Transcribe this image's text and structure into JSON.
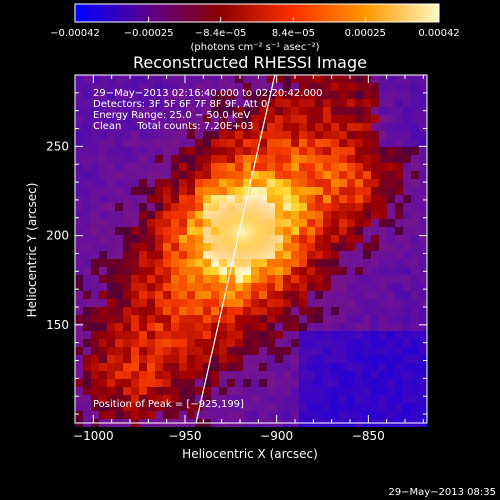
{
  "chart_data": {
    "type": "heatmap",
    "title": "Reconstructed RHESSI Image",
    "xlabel": "Heliocentric X (arcsec)",
    "ylabel": "Heliocentric Y (arcsec)",
    "xlim": [
      -1010,
      -818
    ],
    "ylim": [
      95,
      290
    ],
    "xticks": [
      -1000,
      -950,
      -900,
      -850
    ],
    "xtick_labels": [
      "−1000",
      "−950",
      "−900",
      "−850"
    ],
    "yticks": [
      150,
      200,
      250
    ],
    "ytick_labels": [
      "150",
      "200",
      "250"
    ],
    "colorbar": {
      "min": -0.00042,
      "max": 0.00042,
      "ticks": [
        -0.00042,
        -0.00025,
        -8.4e-05,
        8.4e-05,
        0.00025,
        0.00042
      ],
      "tick_labels": [
        "−0.00042",
        "−0.00025",
        "−8.4e−05",
        "8.4e−05",
        "0.00025",
        "0.00042"
      ],
      "units": "(photons cm⁻² s⁻¹ asec⁻²)",
      "colors": [
        "#0000ff",
        "#5a008c",
        "#8a0000",
        "#ff3000",
        "#ff9900",
        "#fff8c0"
      ]
    },
    "annotations": [
      "29−May−2013 02:16:40.000 to 02:20:42.000",
      "Detectors: 3F 5F 6F 7F 8F 9F, Att 0",
      "Energy Range: 25.0 − 50.0 keV",
      "Clean     Total counts: 7.20E+03"
    ],
    "peak_label": "Position of Peak = [−925,199]",
    "peak": [
      -925,
      199
    ],
    "limb_line": [
      [
        -944,
        95
      ],
      [
        -901,
        290
      ]
    ],
    "timestamp": "29−May−2013 08:35",
    "grid": false,
    "colormap": "red-temperature with blue negative"
  }
}
